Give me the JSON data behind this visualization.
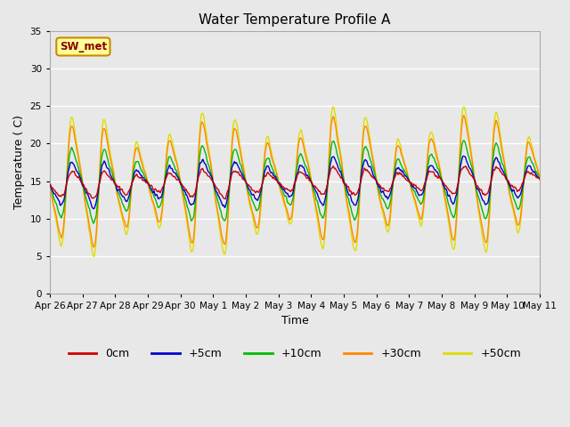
{
  "title": "Water Temperature Profile A",
  "xlabel": "Time",
  "ylabel": "Temperature ( C)",
  "ylim": [
    0,
    35
  ],
  "yticks": [
    0,
    5,
    10,
    15,
    20,
    25,
    30,
    35
  ],
  "plot_bg_color": "#e8e8e8",
  "grid_color": "#ffffff",
  "colors": {
    "0cm": "#cc0000",
    "+5cm": "#0000cc",
    "+10cm": "#00bb00",
    "+30cm": "#ff8800",
    "+50cm": "#dddd00"
  },
  "legend_labels": [
    "0cm",
    "+5cm",
    "+10cm",
    "+30cm",
    "+50cm"
  ],
  "annotation_text": "SW_met",
  "annotation_bg": "#ffff99",
  "annotation_border": "#cc8800",
  "annotation_text_color": "#880000",
  "date_labels": [
    "Apr 26",
    "Apr 27",
    "Apr 28",
    "Apr 29",
    "Apr 30",
    "May 1",
    "May 2",
    "May 3",
    "May 4",
    "May 5",
    "May 6",
    "May 7",
    "May 8",
    "May 9",
    "May 10",
    "May 11"
  ],
  "line_width": 1.0
}
